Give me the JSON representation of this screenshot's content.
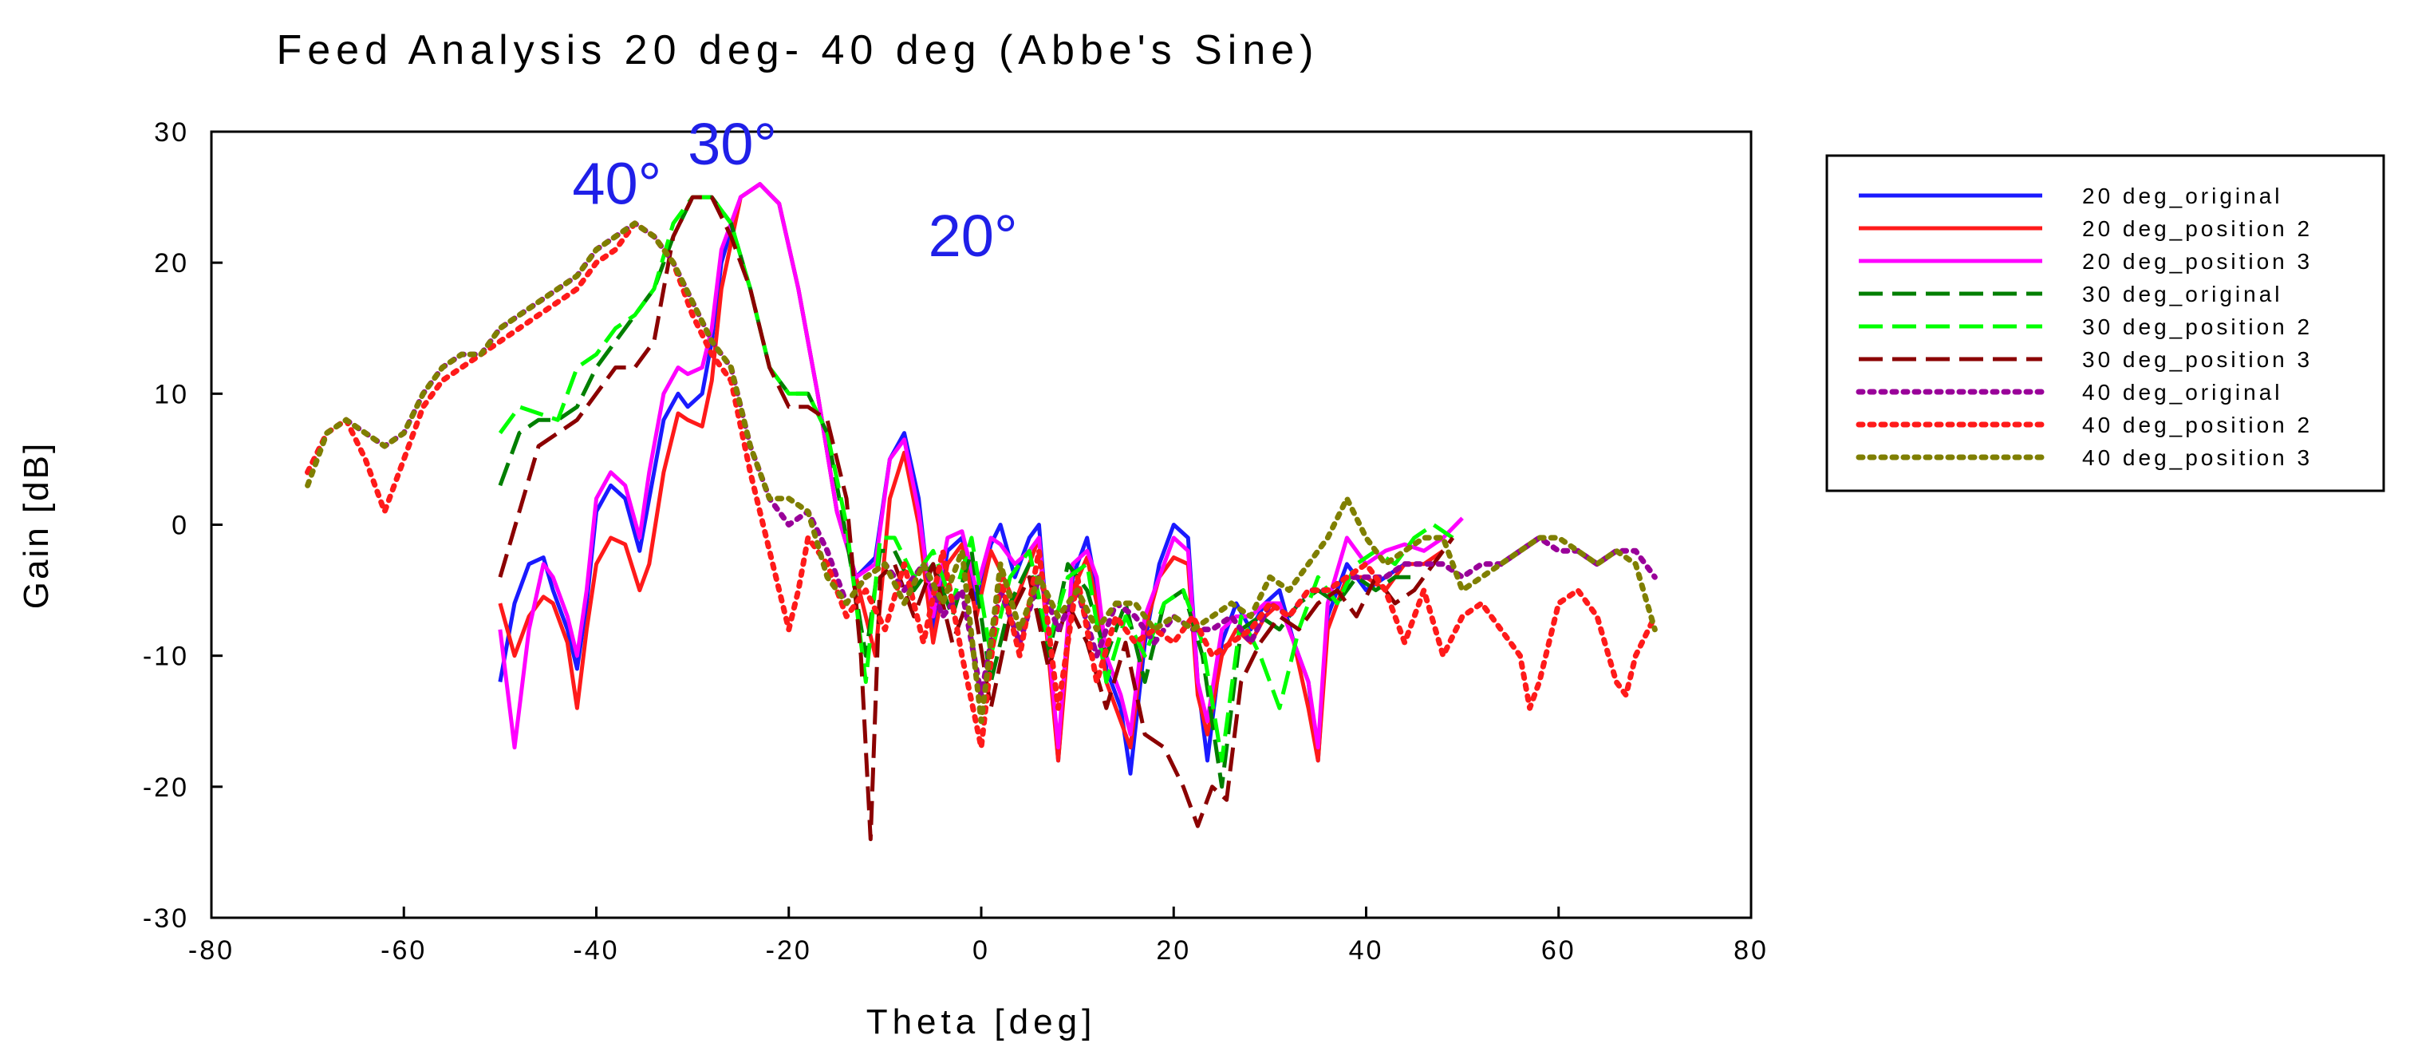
{
  "chart_data": {
    "type": "line",
    "title": "Feed Analysis 20 deg- 40 deg (Abbe's Sine)",
    "xlabel": "Theta [deg]",
    "ylabel": "Gain [dB]",
    "xlim": [
      -80,
      80
    ],
    "ylim": [
      -30,
      30
    ],
    "x_ticks": [
      -80,
      -60,
      -40,
      -20,
      0,
      20,
      40,
      60,
      80
    ],
    "y_ticks": [
      -30,
      -20,
      -10,
      0,
      10,
      20,
      30
    ],
    "grid": false,
    "legend_position": "right",
    "annotations": [
      {
        "text": "40°",
        "x": -42.5,
        "y": 24.5,
        "color": "#1f1fe8"
      },
      {
        "text": "30°",
        "x": -30.5,
        "y": 27.5,
        "color": "#1f1fe8"
      },
      {
        "text": "20°",
        "x": -5.5,
        "y": 20.5,
        "color": "#1f1fe8"
      }
    ],
    "series": [
      {
        "name": "20 deg_original",
        "color": "#1a1aff",
        "dash": "solid",
        "x": [
          -50,
          -48.5,
          -47,
          -45.5,
          -44.5,
          -43,
          -42,
          -41,
          -40,
          -38.5,
          -37,
          -35.5,
          -34.5,
          -33,
          -31.5,
          -30.5,
          -29,
          -28,
          -27,
          -25,
          -23,
          -21,
          -19,
          -17,
          -15,
          -13,
          -11,
          -9.5,
          -8,
          -6.5,
          -5,
          -3.5,
          -2,
          -0.5,
          1,
          2,
          3.5,
          5,
          6,
          7,
          8,
          9.5,
          11,
          12,
          13,
          14.5,
          15.5,
          17,
          18.5,
          20,
          21.5,
          22.5,
          23.5,
          25,
          26.5,
          28,
          29.5,
          31,
          32.5,
          34,
          35,
          36,
          38,
          40,
          42,
          44
        ],
        "y": [
          -12,
          -6,
          -3,
          -2.5,
          -5,
          -8,
          -11,
          -6,
          1,
          3,
          2,
          -2,
          2,
          8,
          10,
          9,
          10,
          14,
          20,
          25,
          26,
          24.5,
          18,
          10,
          1,
          -4,
          -2.5,
          5,
          7,
          2,
          -8,
          -2,
          -1,
          -6,
          -1.5,
          0,
          -4,
          -1,
          0,
          -9,
          -18,
          -4,
          -1,
          -5,
          -11,
          -14,
          -19,
          -9,
          -3,
          0,
          -1,
          -12,
          -18,
          -9,
          -6,
          -8,
          -6,
          -5,
          -9,
          -12,
          -18,
          -7,
          -3,
          -5,
          -4,
          -3
        ]
      },
      {
        "name": "20 deg_position 2",
        "color": "#ff1a1a",
        "dash": "solid",
        "x": [
          -50,
          -48.5,
          -47,
          -45.5,
          -44.5,
          -43,
          -42,
          -41,
          -40,
          -38.5,
          -37,
          -35.5,
          -34.5,
          -33,
          -31.5,
          -30.5,
          -29,
          -28,
          -27,
          -25,
          -23,
          -21,
          -19,
          -17,
          -15,
          -13,
          -11,
          -9.5,
          -8,
          -6.5,
          -5,
          -3.5,
          -2,
          -0.5,
          1,
          2,
          3.5,
          5,
          6,
          7,
          8,
          9.5,
          11,
          12,
          13,
          14.5,
          15.5,
          17,
          18.5,
          20,
          21.5,
          22.5,
          23.5,
          25,
          26.5,
          28,
          29.5,
          31,
          32.5,
          34,
          35,
          36,
          38,
          40,
          42,
          44,
          46,
          48
        ],
        "y": [
          -6,
          -10,
          -7,
          -5.5,
          -6,
          -9,
          -14,
          -8,
          -3,
          -1,
          -1.5,
          -5,
          -3,
          4,
          8.5,
          8,
          7.5,
          11,
          18,
          25,
          26,
          24.5,
          18,
          10,
          1,
          -4,
          -10,
          2,
          5.5,
          0,
          -9,
          -3,
          -1.5,
          -7,
          -2,
          -3.5,
          -6,
          -3,
          -1,
          -10,
          -18,
          -5,
          -2.5,
          -6,
          -12,
          -15,
          -17,
          -8,
          -4,
          -2.5,
          -3,
          -13,
          -16,
          -10,
          -8,
          -9,
          -7,
          -6,
          -9,
          -14,
          -18,
          -8,
          -4,
          -4,
          -5,
          -3,
          -3,
          -2
        ]
      },
      {
        "name": "20 deg_position 3",
        "color": "#ff00ff",
        "dash": "solid",
        "x": [
          -50,
          -48.5,
          -47,
          -45.5,
          -44.5,
          -43,
          -42,
          -41,
          -40,
          -38.5,
          -37,
          -35.5,
          -34.5,
          -33,
          -31.5,
          -30.5,
          -29,
          -28,
          -27,
          -25,
          -23,
          -21,
          -19,
          -17,
          -15,
          -13,
          -11,
          -9.5,
          -8,
          -6.5,
          -5,
          -3.5,
          -2,
          -0.5,
          1,
          2,
          3.5,
          5,
          6,
          7,
          8,
          9.5,
          11,
          12,
          13,
          14.5,
          15.5,
          17,
          18.5,
          20,
          21.5,
          22.5,
          23.5,
          25,
          26.5,
          28,
          29.5,
          31,
          32.5,
          34,
          35,
          36,
          38,
          40,
          42,
          44,
          46,
          48,
          50
        ],
        "y": [
          -8,
          -17,
          -8,
          -3,
          -4,
          -7,
          -10,
          -5,
          2,
          4,
          3,
          -1,
          4,
          10,
          12,
          11.5,
          12,
          15,
          21,
          25,
          26,
          24.5,
          18,
          10,
          1,
          -4,
          -3,
          5,
          6.5,
          1,
          -7,
          -1,
          -0.5,
          -5,
          -1,
          -1.5,
          -3,
          -2,
          -1,
          -9,
          -17,
          -3,
          -2,
          -4,
          -10,
          -13,
          -16,
          -7,
          -4,
          -1,
          -2,
          -12,
          -15,
          -8,
          -7,
          -7,
          -6,
          -6,
          -9,
          -12,
          -17,
          -6,
          -1,
          -3,
          -2,
          -1.5,
          -2,
          -1,
          0.5
        ]
      },
      {
        "name": "30 deg_original",
        "color": "#007f00",
        "dash": "dashed",
        "x": [
          -50,
          -48,
          -46,
          -44,
          -42,
          -40,
          -38,
          -36,
          -34,
          -32,
          -30,
          -28,
          -26,
          -24,
          -22,
          -20,
          -18,
          -16,
          -14,
          -12,
          -10.5,
          -9,
          -7,
          -5,
          -3,
          -1,
          1,
          3,
          5,
          7,
          9,
          11,
          13,
          15,
          17,
          19,
          21,
          23,
          25,
          27,
          29,
          31,
          33,
          35,
          37,
          39,
          41,
          43,
          45
        ],
        "y": [
          3,
          7,
          8,
          8,
          9,
          12,
          14,
          16,
          18,
          22,
          25,
          25,
          23,
          18,
          12,
          10,
          10,
          7,
          -1,
          -10,
          -2,
          -2,
          -5,
          -3,
          -7,
          -2,
          -12,
          -6,
          -3,
          -10,
          -3,
          -5,
          -10,
          -6,
          -12,
          -6,
          -5,
          -10,
          -20,
          -8,
          -7,
          -8,
          -6,
          -5,
          -6,
          -4,
          -5,
          -4,
          -4
        ]
      },
      {
        "name": "30 deg_position 2",
        "color": "#00ff00",
        "dash": "dashed",
        "x": [
          -50,
          -48,
          -46,
          -44,
          -42,
          -40,
          -38,
          -36,
          -34,
          -32,
          -30,
          -28,
          -26,
          -24,
          -22,
          -20,
          -18,
          -16,
          -14,
          -12,
          -10.5,
          -9,
          -7,
          -5,
          -3,
          -1,
          1,
          3,
          5,
          7,
          9,
          11,
          13,
          15,
          17,
          19,
          21,
          23,
          25,
          27,
          29,
          31,
          33,
          35,
          37,
          39,
          41,
          43,
          45,
          47,
          49
        ],
        "y": [
          7,
          9,
          8.5,
          8,
          12,
          13,
          15,
          16,
          18,
          23,
          25,
          25,
          23,
          18,
          12,
          10,
          10,
          7,
          0,
          -12,
          -1,
          -1,
          -4,
          -2,
          -6,
          -1,
          -10,
          -4,
          -2,
          -9,
          -4,
          -3,
          -12,
          -7,
          -10,
          -6,
          -5,
          -9,
          -18,
          -7,
          -10,
          -14,
          -8,
          -4,
          -6,
          -3,
          -2,
          -3,
          -1,
          0,
          -1
        ]
      },
      {
        "name": "30 deg_position 3",
        "color": "#8b0000",
        "dash": "dashed",
        "x": [
          -50,
          -48,
          -46,
          -44,
          -42,
          -40,
          -38,
          -36,
          -34,
          -32,
          -30,
          -28,
          -26,
          -24,
          -22,
          -20,
          -18,
          -16,
          -14,
          -12.5,
          -11.5,
          -10.5,
          -9,
          -7,
          -5,
          -3,
          -1,
          1,
          3,
          5,
          7,
          9,
          11,
          13,
          15,
          17,
          19,
          21,
          22.5,
          24,
          25.5,
          27,
          29,
          31,
          33,
          35,
          37,
          39,
          41,
          43,
          45,
          47,
          49
        ],
        "y": [
          -4,
          1,
          6,
          7,
          8,
          10,
          12,
          12,
          14,
          22,
          25,
          25,
          22,
          18,
          12,
          9,
          9,
          8,
          2,
          -10,
          -24,
          -4,
          -3,
          -7,
          -3,
          -9,
          -5,
          -14,
          -7,
          -4,
          -11,
          -6,
          -9,
          -14,
          -9,
          -16,
          -17,
          -20,
          -23,
          -20,
          -21,
          -12,
          -9,
          -7,
          -8,
          -6,
          -5,
          -7,
          -4,
          -6,
          -5,
          -3,
          -1
        ]
      },
      {
        "name": "40 deg_original",
        "color": "#990099",
        "dash": "dotted",
        "x": [
          -70,
          -68,
          -66,
          -64,
          -62,
          -60,
          -58,
          -56,
          -54,
          -52,
          -50,
          -48,
          -46,
          -44,
          -42,
          -40,
          -38,
          -36,
          -34,
          -32,
          -30,
          -28,
          -26,
          -24,
          -22,
          -20,
          -18,
          -16,
          -14,
          -12,
          -10,
          -8,
          -6,
          -4,
          -2,
          0,
          2,
          4,
          6,
          8,
          10,
          12,
          14,
          16,
          18,
          20,
          22,
          24,
          26,
          28,
          30,
          32,
          34,
          36,
          38,
          40,
          42,
          44,
          46,
          48,
          50,
          52,
          54,
          56,
          58,
          60,
          62,
          64,
          66,
          68,
          70
        ],
        "y": [
          4,
          7,
          8,
          7,
          6,
          7,
          10,
          12,
          13,
          13,
          15,
          16,
          17,
          18,
          19,
          21,
          22,
          23,
          22,
          20,
          17,
          14,
          12,
          6,
          2,
          0,
          1,
          -2,
          -6,
          -4,
          -3,
          -5,
          -3,
          -7,
          -5,
          -13,
          -5,
          -9,
          -4,
          -8,
          -5,
          -10,
          -6,
          -7,
          -9,
          -7,
          -8,
          -8,
          -7,
          -9,
          -6,
          -7,
          -5,
          -5,
          -4,
          -4,
          -4,
          -3,
          -3,
          -3,
          -4,
          -3,
          -3,
          -2,
          -1,
          -2,
          -2,
          -3,
          -2,
          -2,
          -4
        ]
      },
      {
        "name": "40 deg_position 2",
        "color": "#ff1a1a",
        "dash": "dotted",
        "x": [
          -70,
          -68,
          -66,
          -64,
          -62,
          -60,
          -58,
          -56,
          -54,
          -52,
          -50,
          -48,
          -46,
          -44,
          -42,
          -40,
          -38,
          -36,
          -34,
          -32,
          -30,
          -28,
          -26,
          -24,
          -22,
          -20,
          -19,
          -18,
          -16,
          -14,
          -12,
          -10,
          -8,
          -6,
          -4,
          -2,
          0,
          2,
          4,
          6,
          8,
          10,
          12,
          14,
          16,
          18,
          20,
          22,
          24,
          26,
          28,
          30,
          32,
          34,
          36,
          38,
          40,
          42,
          44,
          46,
          48,
          50,
          52,
          54,
          56,
          57,
          58,
          60,
          62,
          64,
          66,
          67,
          68,
          70
        ],
        "y": [
          4,
          7,
          8,
          5,
          1,
          5,
          9,
          11,
          12,
          13,
          14,
          15,
          16,
          17,
          18,
          20,
          21,
          23,
          22,
          20,
          16,
          13,
          11,
          4,
          -2,
          -8,
          -5,
          -1,
          -3,
          -7,
          -5,
          -8,
          -3,
          -9,
          -2,
          -10,
          -17,
          -4,
          -10,
          -2,
          -14,
          -4,
          -12,
          -7,
          -9,
          -8,
          -9,
          -7,
          -10,
          -9,
          -8,
          -6,
          -7,
          -5,
          -5,
          -4,
          -3,
          -5,
          -9,
          -5,
          -10,
          -7,
          -6,
          -8,
          -10,
          -14,
          -12,
          -6,
          -5,
          -7,
          -12,
          -13,
          -10,
          -7
        ]
      },
      {
        "name": "40 deg_position 3",
        "color": "#7f7f00",
        "dash": "dotted",
        "x": [
          -70,
          -68,
          -66,
          -64,
          -62,
          -60,
          -58,
          -56,
          -54,
          -52,
          -50,
          -48,
          -46,
          -44,
          -42,
          -40,
          -38,
          -36,
          -34,
          -32,
          -30,
          -28,
          -26,
          -24,
          -22,
          -20,
          -18,
          -16,
          -14,
          -12,
          -10,
          -8,
          -6,
          -4,
          -2,
          0,
          2,
          4,
          6,
          8,
          10,
          12,
          14,
          16,
          18,
          20,
          22,
          24,
          26,
          28,
          30,
          32,
          34,
          36,
          38,
          40,
          42,
          44,
          46,
          48,
          50,
          52,
          54,
          56,
          58,
          60,
          62,
          64,
          66,
          68,
          70
        ],
        "y": [
          3,
          7,
          8,
          7,
          6,
          7,
          10,
          12,
          13,
          13,
          15,
          16,
          17,
          18,
          19,
          21,
          22,
          23,
          22,
          20,
          17,
          14,
          12,
          6,
          2,
          2,
          1,
          -4,
          -6,
          -4,
          -3,
          -6,
          -3,
          -6,
          -2,
          -15,
          -3,
          -8,
          -4,
          -7,
          -5,
          -8,
          -6,
          -6,
          -8,
          -7,
          -8,
          -7,
          -6,
          -7,
          -4,
          -5,
          -3,
          -1,
          2,
          -1,
          -3,
          -2,
          -1,
          -1,
          -5,
          -4,
          -3,
          -2,
          -1,
          -1,
          -2,
          -3,
          -2,
          -3,
          -8
        ]
      }
    ]
  }
}
